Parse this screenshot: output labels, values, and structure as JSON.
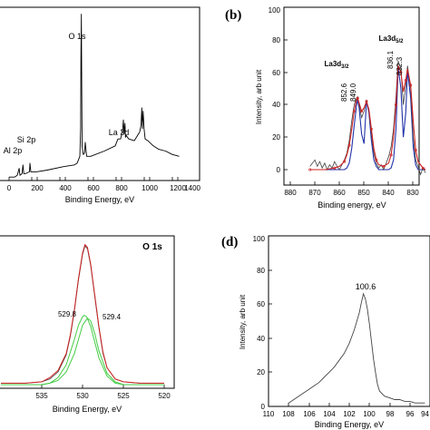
{
  "chart_data": [
    {
      "panel": "a",
      "type": "line",
      "xlabel": "Binding Energy, eV",
      "ylabel": "",
      "xlim": [
        0,
        1400
      ],
      "xticks": [
        0,
        200,
        400,
        600,
        800,
        1000,
        1200,
        1400
      ],
      "grid": false,
      "annotations": [
        {
          "text": "O 1s",
          "x": 531,
          "y": 0.93
        },
        {
          "text": "La 3d",
          "x": 840,
          "y": 0.33
        },
        {
          "text": "Si 2p",
          "x": 102,
          "y": 0.2
        },
        {
          "text": "Al 2p",
          "x": 74,
          "y": 0.12
        }
      ],
      "series": [
        {
          "color": "#000000",
          "x": [
            0,
            40,
            60,
            74,
            80,
            95,
            102,
            108,
            120,
            150,
            153,
            160,
            200,
            280,
            400,
            480,
            500,
            520,
            526,
            528,
            531,
            534,
            537,
            545,
            555,
            560,
            570,
            600,
            700,
            780,
            800,
            820,
            835,
            840,
            845,
            852,
            855,
            860,
            880,
            920,
            960,
            970,
            975,
            980,
            985,
            992,
            1000,
            1020,
            1060,
            1100,
            1150,
            1200,
            1250
          ],
          "y": [
            0.02,
            0.02,
            0.03,
            0.07,
            0.03,
            0.04,
            0.09,
            0.04,
            0.04,
            0.05,
            0.1,
            0.05,
            0.05,
            0.06,
            0.08,
            0.09,
            0.1,
            0.14,
            0.3,
            0.7,
            0.96,
            0.55,
            0.2,
            0.15,
            0.16,
            0.22,
            0.14,
            0.14,
            0.17,
            0.2,
            0.24,
            0.24,
            0.3,
            0.35,
            0.27,
            0.33,
            0.25,
            0.26,
            0.24,
            0.23,
            0.28,
            0.32,
            0.42,
            0.3,
            0.4,
            0.3,
            0.24,
            0.23,
            0.2,
            0.18,
            0.17,
            0.15,
            0.14
          ]
        }
      ]
    },
    {
      "panel": "b",
      "type": "line",
      "xlabel": "Binding energy, eV",
      "ylabel": "Intensity, arb unit",
      "xlim": [
        880,
        825
      ],
      "ylim": [
        -10,
        100
      ],
      "xticks": [
        880,
        870,
        860,
        850,
        840,
        830
      ],
      "yticks": [
        0,
        20,
        40,
        60,
        80,
        100
      ],
      "grid": false,
      "annotations": [
        {
          "text": "La3d3/2",
          "x": 855,
          "y": 75
        },
        {
          "text": "La3d5/2",
          "x": 832,
          "y": 90
        },
        {
          "text": "852.6",
          "x": 852.6,
          "y": 50
        },
        {
          "text": "849.0",
          "x": 849.0,
          "y": 50
        },
        {
          "text": "836.1",
          "x": 836.1,
          "y": 70
        },
        {
          "text": "832.3",
          "x": 832.3,
          "y": 70
        }
      ],
      "series": [
        {
          "color": "#444444",
          "x": [
            872,
            870,
            869,
            868,
            867,
            866,
            865,
            864,
            863,
            862,
            861,
            860,
            859,
            858,
            857,
            856,
            855,
            854,
            853,
            852.6,
            852,
            851,
            850,
            849,
            848,
            847,
            846,
            845,
            844,
            843,
            842,
            841,
            840,
            839,
            838,
            837,
            836.1,
            835,
            834,
            833,
            832.3,
            831,
            830,
            829,
            828,
            827,
            826,
            825
          ],
          "y": [
            2,
            6,
            2,
            5,
            1,
            4,
            0,
            3,
            1,
            5,
            2,
            0,
            3,
            6,
            10,
            18,
            30,
            40,
            44,
            45,
            40,
            32,
            36,
            43,
            36,
            22,
            10,
            4,
            1,
            3,
            0,
            4,
            8,
            14,
            25,
            45,
            67,
            62,
            40,
            52,
            64,
            50,
            20,
            6,
            2,
            -3,
            1,
            -2
          ]
        },
        {
          "color": "#cc2222",
          "x": [
            872,
            866,
            862,
            860,
            858,
            857,
            856,
            855,
            854,
            853,
            852.6,
            852,
            851,
            850,
            849,
            848,
            847,
            846,
            845,
            844,
            842,
            840,
            839,
            838,
            837,
            836.1,
            835,
            834,
            833,
            832.3,
            831,
            830,
            829,
            828,
            826,
            825
          ],
          "y": [
            0,
            0,
            1,
            2,
            5,
            9,
            15,
            25,
            36,
            43,
            44,
            41,
            36,
            38,
            42,
            37,
            25,
            13,
            6,
            3,
            2,
            4,
            9,
            20,
            40,
            64,
            60,
            48,
            55,
            62,
            52,
            30,
            12,
            5,
            1,
            0
          ]
        },
        {
          "color": "#2233aa",
          "x": [
            872,
            858,
            857,
            856,
            855,
            854,
            853,
            852.6,
            852,
            851,
            850,
            849,
            848,
            847,
            846,
            845,
            844,
            842,
            840,
            839,
            838,
            837,
            836.1,
            835,
            834,
            833,
            832.3,
            831,
            830,
            829,
            828,
            826,
            825
          ],
          "y": [
            0,
            0,
            1,
            4,
            13,
            27,
            40,
            43,
            38,
            22,
            16,
            42,
            35,
            18,
            6,
            2,
            0,
            0,
            0,
            1,
            6,
            25,
            63,
            50,
            20,
            35,
            61,
            44,
            14,
            3,
            0,
            0,
            0
          ]
        }
      ]
    },
    {
      "panel": "c",
      "type": "line",
      "title": "O 1s",
      "xlabel": "Binding Energy, eV",
      "ylabel": "",
      "xlim": [
        540,
        520
      ],
      "xticks": [
        535,
        530,
        525,
        520
      ],
      "grid": false,
      "annotations": [
        {
          "text": "529.8",
          "x": 532.5,
          "y": 0.52
        },
        {
          "text": "529.4",
          "x": 527.3,
          "y": 0.5
        }
      ],
      "series": [
        {
          "color": "#444444",
          "x": [
            540,
            537,
            535,
            534,
            533,
            532,
            531.5,
            531,
            530.5,
            530,
            529.7,
            529.4,
            529,
            528.5,
            528,
            527.5,
            527,
            526,
            525,
            523,
            520
          ],
          "y": [
            0.01,
            0.01,
            0.02,
            0.04,
            0.09,
            0.21,
            0.34,
            0.52,
            0.74,
            0.92,
            0.98,
            0.96,
            0.84,
            0.62,
            0.4,
            0.22,
            0.12,
            0.04,
            0.02,
            0.01,
            0.01
          ]
        },
        {
          "color": "#cc2222",
          "x": [
            540,
            537,
            535,
            534,
            533,
            532,
            531.5,
            531,
            530.5,
            530,
            529.7,
            529.4,
            529,
            528.5,
            528,
            527.5,
            527,
            526,
            525,
            523,
            520
          ],
          "y": [
            0.01,
            0.01,
            0.02,
            0.05,
            0.1,
            0.22,
            0.35,
            0.53,
            0.75,
            0.93,
            0.99,
            0.97,
            0.85,
            0.63,
            0.41,
            0.23,
            0.12,
            0.04,
            0.02,
            0.01,
            0.01
          ]
        },
        {
          "color": "#44cc44",
          "x": [
            540,
            535,
            534,
            533,
            532,
            531,
            530.5,
            530,
            529.8,
            529.5,
            529,
            528.5,
            528,
            527,
            526,
            525,
            520
          ],
          "y": [
            0,
            0,
            0.01,
            0.05,
            0.14,
            0.32,
            0.42,
            0.48,
            0.49,
            0.48,
            0.41,
            0.3,
            0.19,
            0.06,
            0.01,
            0,
            0
          ]
        },
        {
          "color": "#44cc44",
          "x": [
            540,
            535,
            534,
            533,
            532,
            531,
            530.5,
            530,
            529.4,
            529,
            528.5,
            528,
            527,
            526,
            525,
            520
          ],
          "y": [
            0,
            0,
            0.01,
            0.03,
            0.09,
            0.22,
            0.32,
            0.42,
            0.47,
            0.45,
            0.36,
            0.24,
            0.08,
            0.02,
            0,
            0
          ]
        }
      ]
    },
    {
      "panel": "d",
      "type": "line",
      "xlabel": "Binding Energy, eV",
      "ylabel": "Intensity, arb unit",
      "xlim": [
        110,
        94
      ],
      "ylim": [
        0,
        100
      ],
      "xticks": [
        110,
        108,
        106,
        104,
        102,
        100,
        98,
        96,
        94
      ],
      "yticks": [
        0,
        20,
        40,
        60,
        80,
        100
      ],
      "grid": false,
      "annotations": [
        {
          "text": "100.6",
          "x": 100.6,
          "y": 70
        }
      ],
      "series": [
        {
          "color": "#444444",
          "x": [
            108,
            107.5,
            107,
            106.5,
            106,
            105.5,
            105,
            104.5,
            104,
            103.5,
            103,
            102.5,
            102,
            101.5,
            101,
            100.8,
            100.6,
            100.4,
            100.2,
            100,
            99.8,
            99.6,
            99.4,
            99.2,
            99,
            98.5,
            98,
            97.5,
            97,
            96.5,
            96,
            95.5,
            95,
            94.5
          ],
          "y": [
            2,
            4,
            6,
            8,
            10,
            12,
            14,
            17,
            20,
            23,
            27,
            31,
            37,
            45,
            55,
            61,
            66,
            63,
            57,
            48,
            38,
            28,
            20,
            13,
            9,
            6,
            5,
            4,
            4,
            3,
            3,
            2,
            2,
            2
          ]
        }
      ]
    }
  ],
  "panel_labels": {
    "b": "(b)",
    "d": "(d)"
  },
  "titles": {
    "c": "O 1s"
  },
  "labels": {
    "a_xlabel": "Binding Energy, eV",
    "b_xlabel": "Binding energy, eV",
    "b_ylabel": "Intensity, arb unit",
    "c_xlabel": "Binding Energy, eV",
    "d_xlabel": "Binding Energy, eV",
    "d_ylabel": "Intensity, arb unit"
  },
  "annotations": {
    "a_o1s": "O 1s",
    "a_la3d": "La 3d",
    "a_si2p": "Si 2p",
    "a_al2p": "Al 2p",
    "b_la3d32_main": "La3d",
    "b_la3d32_sub": "3/2",
    "b_la3d52_main": "La3d",
    "b_la3d52_sub": "5/2",
    "b_p1": "852.6",
    "b_p2": "849.0",
    "b_p3": "836.1",
    "b_p4": "832.3",
    "c_p1": "529.8",
    "c_p2": "529.4",
    "d_p1": "100.6"
  },
  "ticks": {
    "a_x": [
      "0",
      "200",
      "400",
      "600",
      "800",
      "1000",
      "1200",
      "1400"
    ],
    "b_x": [
      "880",
      "870",
      "860",
      "850",
      "840",
      "830"
    ],
    "b_y": [
      "0",
      "20",
      "40",
      "60",
      "80",
      "100"
    ],
    "c_x": [
      "535",
      "530",
      "525",
      "520"
    ],
    "d_x": [
      "110",
      "108",
      "106",
      "104",
      "102",
      "100",
      "98",
      "96",
      "94"
    ],
    "d_y": [
      "0",
      "20",
      "40",
      "60",
      "80",
      "100"
    ]
  }
}
